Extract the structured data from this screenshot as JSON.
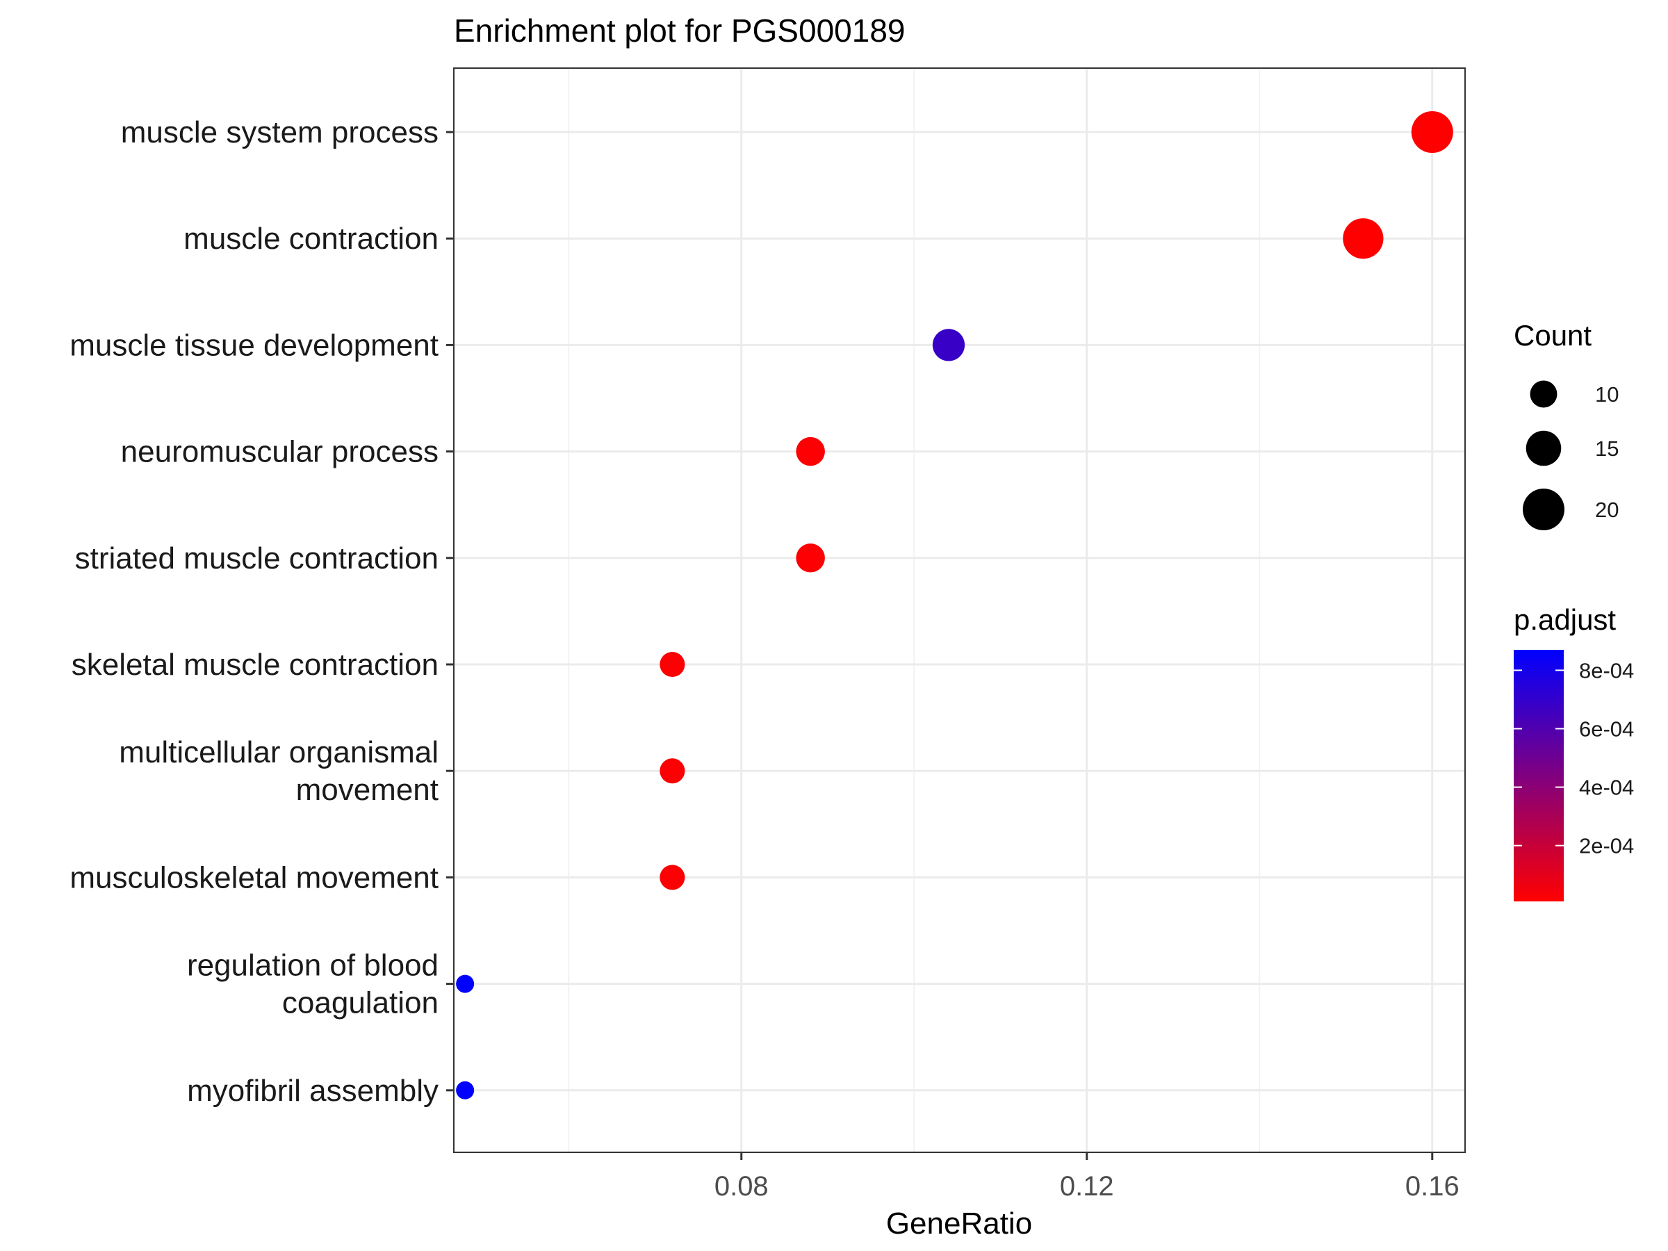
{
  "chart_data": {
    "type": "scatter",
    "title": "Enrichment plot for PGS000189",
    "xlabel": "GeneRatio",
    "ylabel": "",
    "xlim": [
      0.0467,
      0.1638
    ],
    "xticks": [
      0.08,
      0.12,
      0.16
    ],
    "xtick_labels": [
      "0.08",
      "0.12",
      "0.16"
    ],
    "grid": true,
    "categories": [
      "muscle system process",
      "muscle contraction",
      "muscle tissue development",
      "neuromuscular process",
      "striated muscle contraction",
      "skeletal muscle contraction",
      "multicellular organismal movement",
      "musculoskeletal movement",
      "regulation of blood coagulation",
      "myofibril assembly"
    ],
    "category_label_lines": [
      [
        "muscle system process"
      ],
      [
        "muscle contraction"
      ],
      [
        "muscle tissue development"
      ],
      [
        "neuromuscular process"
      ],
      [
        "striated muscle contraction"
      ],
      [
        "skeletal muscle contraction"
      ],
      [
        "multicellular organismal",
        "movement"
      ],
      [
        "musculoskeletal movement"
      ],
      [
        "regulation of blood",
        "coagulation"
      ],
      [
        "myofibril assembly"
      ]
    ],
    "points": [
      {
        "term": "muscle system process",
        "gene_ratio": 0.16,
        "count": 20,
        "p_adjust": 1e-05
      },
      {
        "term": "muscle contraction",
        "gene_ratio": 0.152,
        "count": 19,
        "p_adjust": 1e-05
      },
      {
        "term": "muscle tissue development",
        "gene_ratio": 0.104,
        "count": 13,
        "p_adjust": 0.00068
      },
      {
        "term": "neuromuscular process",
        "gene_ratio": 0.088,
        "count": 11,
        "p_adjust": 2e-05
      },
      {
        "term": "striated muscle contraction",
        "gene_ratio": 0.088,
        "count": 11,
        "p_adjust": 2e-05
      },
      {
        "term": "skeletal muscle contraction",
        "gene_ratio": 0.072,
        "count": 9,
        "p_adjust": 2e-05
      },
      {
        "term": "multicellular organismal movement",
        "gene_ratio": 0.072,
        "count": 9,
        "p_adjust": 2e-05
      },
      {
        "term": "musculoskeletal movement",
        "gene_ratio": 0.072,
        "count": 9,
        "p_adjust": 2e-05
      },
      {
        "term": "regulation of blood coagulation",
        "gene_ratio": 0.048,
        "count": 6,
        "p_adjust": 0.00087
      },
      {
        "term": "myofibril assembly",
        "gene_ratio": 0.048,
        "count": 6,
        "p_adjust": 0.00087
      }
    ],
    "size_legend": {
      "title": "Count",
      "values": [
        10,
        15,
        20
      ],
      "labels": [
        "10",
        "15",
        "20"
      ]
    },
    "color_legend": {
      "title": "p.adjust",
      "low_color": "#FF0000",
      "high_color": "#0000FF",
      "range": [
        8.9e-06,
        0.00087
      ],
      "ticks": [
        0.0002,
        0.0004,
        0.0006,
        0.0008
      ],
      "tick_labels": [
        "2e-04",
        "4e-04",
        "6e-04",
        "8e-04"
      ]
    },
    "legend_position": "right"
  }
}
